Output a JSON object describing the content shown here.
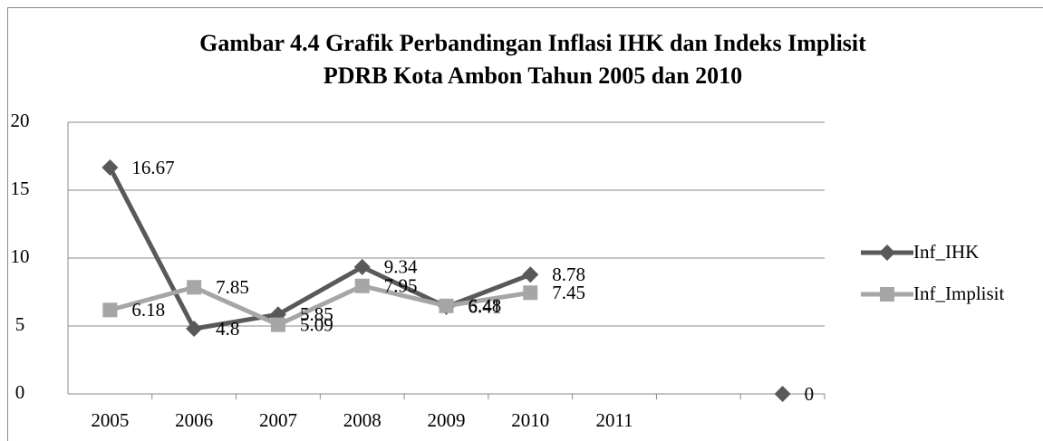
{
  "chart_data": {
    "type": "line",
    "title": [
      "Gambar 4.4 Grafik Perbandingan Inflasi IHK dan Indeks Implisit",
      "PDRB Kota Ambon Tahun 2005 dan 2010"
    ],
    "categories": [
      "2005",
      "2006",
      "2007",
      "2008",
      "2009",
      "2010",
      "2011",
      null,
      null
    ],
    "series": [
      {
        "name": "Inf_IHK",
        "color": "#595959",
        "marker": "diamond",
        "values": [
          16.67,
          4.8,
          5.85,
          9.34,
          6.41,
          8.78,
          null,
          null,
          0
        ]
      },
      {
        "name": "Inf_Implisit",
        "color": "#a6a6a6",
        "marker": "square",
        "values": [
          6.18,
          7.85,
          5.09,
          7.95,
          6.48,
          7.45,
          null,
          null,
          null
        ]
      }
    ],
    "ylim": [
      0,
      20
    ],
    "yticks": [
      0,
      5,
      10,
      15,
      20
    ],
    "grid": true,
    "legend": "right"
  }
}
